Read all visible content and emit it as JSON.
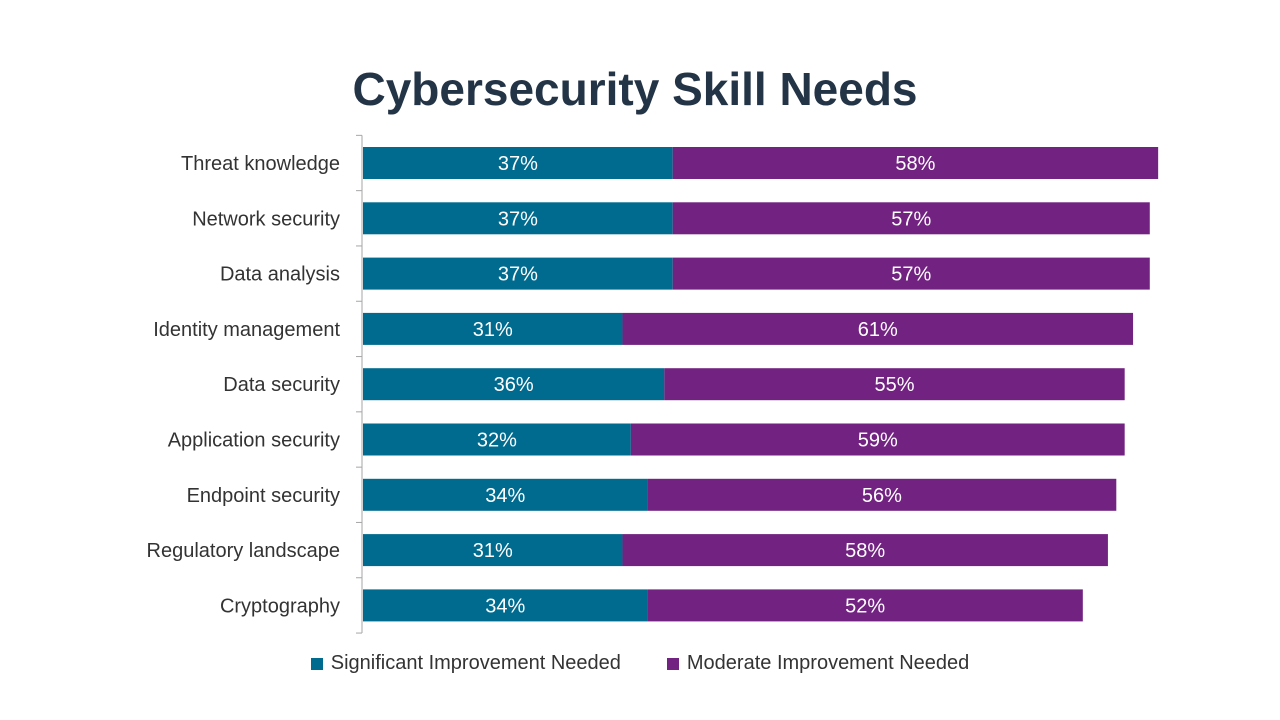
{
  "chart_data": {
    "type": "bar",
    "orientation": "horizontal",
    "stacked": true,
    "title": "Cybersecurity Skill Needs",
    "categories": [
      "Threat knowledge",
      "Network security",
      "Data analysis",
      "Identity management",
      "Data security",
      "Application security",
      "Endpoint security",
      "Regulatory landscape",
      "Cryptography"
    ],
    "series": [
      {
        "name": "Significant Improvement Needed",
        "color": "#006B8F",
        "values": [
          37,
          37,
          37,
          31,
          36,
          32,
          34,
          31,
          34
        ],
        "labels": [
          "37%",
          "37%",
          "37%",
          "31%",
          "36%",
          "32%",
          "34%",
          "31%",
          "34%"
        ]
      },
      {
        "name": "Moderate Improvement Needed",
        "color": "#722281",
        "values": [
          58,
          57,
          57,
          61,
          55,
          59,
          56,
          58,
          52
        ],
        "labels": [
          "58%",
          "57%",
          "57%",
          "61%",
          "55%",
          "59%",
          "56%",
          "58%",
          "52%"
        ]
      }
    ],
    "xlim": [
      0,
      100
    ],
    "unit": "%",
    "grid": false,
    "legend_position": "bottom",
    "data_labels": true
  }
}
